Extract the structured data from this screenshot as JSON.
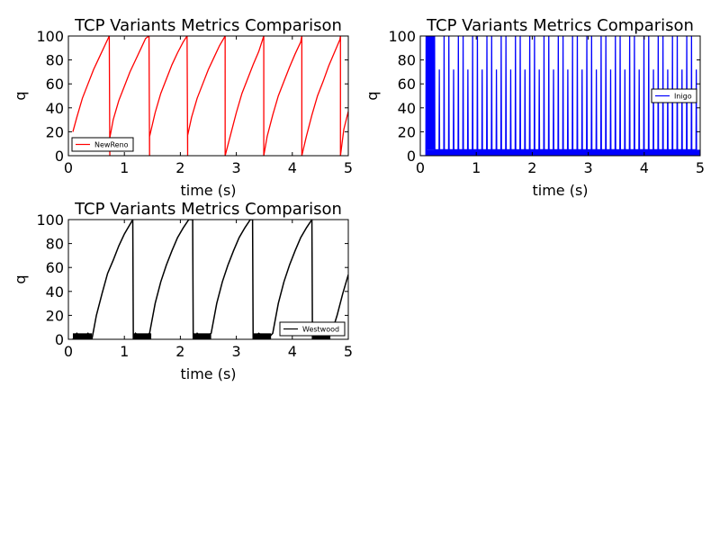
{
  "chart_data": [
    {
      "type": "line",
      "title": "TCP Variants Metrics Comparison",
      "xlabel": "time (s)",
      "ylabel": "q",
      "xlim": [
        0,
        5
      ],
      "ylim": [
        0,
        100
      ],
      "xticks": [
        0,
        1,
        2,
        3,
        4,
        5
      ],
      "yticks": [
        0,
        20,
        40,
        60,
        80,
        100
      ],
      "legend_position": "lower-left",
      "grid": false,
      "series": [
        {
          "name": "NewReno",
          "color": "#ff0000",
          "x": [
            0.08,
            0.15,
            0.25,
            0.35,
            0.45,
            0.55,
            0.65,
            0.73,
            0.74,
            0.74,
            0.8,
            0.9,
            1.0,
            1.1,
            1.2,
            1.3,
            1.38,
            1.44,
            1.45,
            1.45,
            1.55,
            1.65,
            1.75,
            1.85,
            1.95,
            2.05,
            2.12,
            2.13,
            2.13,
            2.2,
            2.3,
            2.4,
            2.5,
            2.6,
            2.7,
            2.8,
            2.8,
            2.9,
            3.0,
            3.1,
            3.2,
            3.3,
            3.4,
            3.49,
            3.49,
            3.55,
            3.65,
            3.75,
            3.85,
            3.95,
            4.05,
            4.15,
            4.17,
            4.17,
            4.25,
            4.35,
            4.45,
            4.55,
            4.65,
            4.75,
            4.85,
            4.86,
            4.86,
            4.92,
            5.0
          ],
          "y": [
            20,
            32,
            48,
            60,
            72,
            82,
            92,
            100,
            0,
            15,
            30,
            46,
            58,
            70,
            80,
            90,
            98,
            100,
            0,
            16,
            36,
            52,
            64,
            76,
            86,
            95,
            100,
            0,
            17,
            32,
            48,
            60,
            72,
            82,
            92,
            100,
            0,
            18,
            36,
            52,
            64,
            76,
            87,
            100,
            0,
            16,
            34,
            50,
            62,
            74,
            85,
            95,
            100,
            0,
            16,
            34,
            50,
            62,
            75,
            86,
            97,
            100,
            0,
            22,
            37
          ]
        },
        {
          "name": "Inigo",
          "color": "#0000ff",
          "pattern": "sawtooth oscillation between ~5 and 100 with plateaus near 70",
          "x": [
            0.0,
            0.1,
            0.12,
            0.15,
            0.18,
            0.2,
            0.25,
            0.3,
            0.4,
            0.5,
            1.0,
            2.0,
            3.0,
            4.0,
            5.0
          ],
          "y": [
            0,
            0,
            100,
            80,
            100,
            100,
            5,
            72,
            5,
            100,
            5,
            72,
            5,
            100,
            5
          ]
        },
        {
          "name": "Westwood",
          "color": "#000000",
          "x": [
            0.08,
            0.15,
            0.25,
            0.35,
            0.42,
            0.5,
            0.6,
            0.7,
            0.8,
            0.9,
            1.0,
            1.1,
            1.15,
            1.16,
            1.2,
            1.3,
            1.45,
            1.55,
            1.65,
            1.75,
            1.85,
            1.95,
            2.05,
            2.15,
            2.22,
            2.23,
            2.3,
            2.4,
            2.55,
            2.65,
            2.75,
            2.85,
            2.95,
            3.05,
            3.15,
            3.25,
            3.29,
            3.3,
            3.4,
            3.55,
            3.65,
            3.75,
            3.85,
            3.95,
            4.05,
            4.15,
            4.25,
            4.35,
            4.36,
            4.45,
            4.6,
            4.7,
            4.8,
            4.9,
            5.0
          ],
          "y": [
            0,
            5,
            0,
            5,
            0,
            20,
            38,
            55,
            66,
            78,
            88,
            96,
            100,
            0,
            5,
            0,
            5,
            30,
            48,
            62,
            74,
            85,
            93,
            100,
            100,
            0,
            5,
            0,
            5,
            30,
            48,
            62,
            74,
            85,
            93,
            100,
            100,
            0,
            5,
            0,
            5,
            30,
            48,
            62,
            74,
            85,
            93,
            100,
            0,
            5,
            0,
            5,
            20,
            38,
            54
          ]
        }
      ]
    }
  ]
}
